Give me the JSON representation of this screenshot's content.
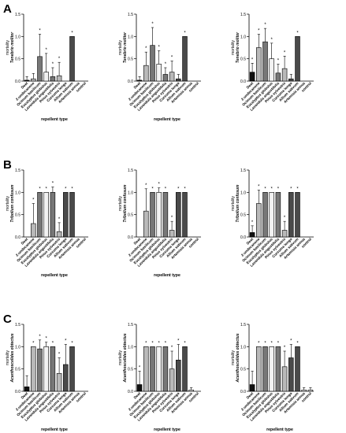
{
  "figure": {
    "panel_letters": [
      "A",
      "B",
      "C"
    ],
    "colors": {
      "dark": "#111111",
      "mid_gray": "#777777",
      "light_gray": "#b9b9b9",
      "dark_gray": "#4a4a4a",
      "white_bar": "#f2f2f2",
      "axis": "#000000"
    }
  },
  "chart_data": [
    {
      "type": "bar",
      "panel": "A",
      "ylabel_line1": "mortality",
      "ylabel_line2": "Tenebrio molitor",
      "xlabel": "repellent type",
      "categories": [
        "Deet",
        "2-undecanone",
        "Ocimum basilicum",
        "Eucalyptus globulus",
        "Lavandula angustifolia",
        "Pinus sylvestris",
        "Curcuma longa",
        "Allium sativum",
        "Artemisia annua",
        "control"
      ],
      "values": [
        0.02,
        0.05,
        0.55,
        0.2,
        0.1,
        0.12,
        0,
        1.0,
        0,
        0
      ],
      "errors": [
        0.08,
        0.12,
        0.5,
        0.42,
        0.2,
        0.3,
        0,
        0,
        0,
        0
      ],
      "stars": [
        false,
        false,
        true,
        true,
        true,
        true,
        false,
        true,
        false,
        false
      ],
      "ylim": [
        0,
        1.5
      ],
      "yticks": [
        "0.0",
        "0.5",
        "1.0",
        "1.5"
      ]
    },
    {
      "type": "bar",
      "panel": "A",
      "ylabel_line1": "mortality",
      "ylabel_line2": "Tenebrio molitor",
      "xlabel": "repellent type",
      "categories": [
        "Deet",
        "2-undecanone",
        "Ocimum basilicum",
        "Eucalyptus globulus",
        "Lavandula angustifolia",
        "Pinus sylvestris",
        "Curcuma longa",
        "Allium sativum",
        "Artemisia annua",
        "control"
      ],
      "values": [
        0.02,
        0.35,
        0.8,
        0.38,
        0.15,
        0.2,
        0.05,
        1.0,
        0,
        0
      ],
      "errors": [
        0.08,
        0.3,
        0.4,
        0.3,
        0.15,
        0.25,
        0.1,
        0,
        0,
        0
      ],
      "stars": [
        false,
        true,
        true,
        true,
        true,
        true,
        false,
        true,
        false,
        false
      ],
      "ylim": [
        0,
        1.5
      ],
      "yticks": [
        "0.0",
        "0.5",
        "1.0",
        "1.5"
      ]
    },
    {
      "type": "bar",
      "panel": "A",
      "ylabel_line1": "mortality",
      "ylabel_line2": "Tenebrio molitor",
      "xlabel": "",
      "categories": [
        "Deet",
        "2-undecanone",
        "Ocimum basilicum",
        "Eucalyptus globulus",
        "Lavandula angustifolia",
        "Pinus sylvestris",
        "Curcuma longa",
        "Allium sativum",
        "Artemisia annua",
        "control"
      ],
      "values": [
        0.2,
        0.75,
        0.88,
        0.5,
        0.18,
        0.28,
        0.05,
        1.0,
        0,
        0
      ],
      "errors": [
        0.2,
        0.3,
        0.3,
        0.35,
        0.2,
        0.28,
        0.1,
        0,
        0,
        0
      ],
      "stars": [
        true,
        true,
        true,
        true,
        true,
        true,
        false,
        true,
        false,
        false
      ],
      "ylim": [
        0,
        1.5
      ],
      "yticks": [
        "0.0",
        "0.5",
        "1.0",
        "1.5"
      ]
    },
    {
      "type": "bar",
      "panel": "B",
      "ylabel_line1": "mortality",
      "ylabel_line2": "Tribolium confusum",
      "xlabel": "repellent type",
      "categories": [
        "Deet",
        "2-undecanone",
        "Ocimum basilicum",
        "Eucalyptus globulus",
        "Lavandula angustifolia",
        "Pinus sylvestris",
        "Curcuma longa",
        "Allium sativum",
        "Artemisia annua",
        "control"
      ],
      "values": [
        0,
        0.3,
        1.0,
        1.0,
        1.0,
        0.12,
        1.0,
        1.0,
        0,
        0
      ],
      "errors": [
        0,
        0.45,
        0,
        0,
        0.12,
        0.2,
        0,
        0,
        0,
        0
      ],
      "stars": [
        false,
        true,
        true,
        true,
        true,
        true,
        true,
        true,
        false,
        false
      ],
      "ylim": [
        0,
        1.5
      ],
      "yticks": [
        "0.0",
        "0.5",
        "1.0",
        "1.5"
      ]
    },
    {
      "type": "bar",
      "panel": "B",
      "ylabel_line1": "mortality",
      "ylabel_line2": "Tribolium confusum",
      "xlabel": "repellent type",
      "categories": [
        "Deet",
        "2-undecanone",
        "Ocimum basilicum",
        "Eucalyptus globulus",
        "Lavandula angustifolia",
        "Pinus sylvestris",
        "Curcuma longa",
        "Allium sativum",
        "Artemisia annua",
        "control"
      ],
      "values": [
        0,
        0.58,
        1.0,
        1.0,
        1.0,
        0.15,
        1.0,
        1.0,
        0,
        0
      ],
      "errors": [
        0,
        0.5,
        0,
        0.1,
        0,
        0.2,
        0,
        0,
        0,
        0
      ],
      "stars": [
        false,
        true,
        true,
        true,
        true,
        true,
        true,
        true,
        false,
        false
      ],
      "ylim": [
        0,
        1.5
      ],
      "yticks": [
        "0.0",
        "0.5",
        "1.0",
        "1.5"
      ]
    },
    {
      "type": "bar",
      "panel": "B",
      "ylabel_line1": "mortality",
      "ylabel_line2": "Tribolium confusum",
      "xlabel": "",
      "categories": [
        "Deet",
        "2-undecanone",
        "Ocimum basilicum",
        "Eucalyptus globulus",
        "Lavandula angustifolia",
        "Pinus sylvestris",
        "Curcuma longa",
        "Allium sativum",
        "Artemisia annua",
        "control"
      ],
      "values": [
        0.1,
        0.75,
        1.0,
        1.0,
        1.0,
        0.15,
        1.0,
        1.0,
        0,
        0
      ],
      "errors": [
        0.15,
        0.3,
        0,
        0,
        0,
        0.2,
        0,
        0,
        0,
        0
      ],
      "stars": [
        true,
        true,
        true,
        true,
        true,
        true,
        true,
        true,
        false,
        false
      ],
      "ylim": [
        0,
        1.5
      ],
      "yticks": [
        "0.0",
        "0.5",
        "1.0",
        "1.5"
      ]
    },
    {
      "type": "bar",
      "panel": "C",
      "ylabel_line1": "mortality",
      "ylabel_line2": "Acanthoscelides obtectus",
      "xlabel": "repellent type",
      "categories": [
        "Deet",
        "2-undecanone",
        "Ocimum basilicum",
        "Eucalyptus globulus",
        "Lavandula angustifolia",
        "Pinus sylvestris",
        "Curcuma longa",
        "Allium sativum",
        "Artemisia annua",
        "control"
      ],
      "values": [
        0.1,
        1.0,
        0.95,
        1.0,
        1.0,
        0.4,
        0.6,
        1.0,
        0,
        0
      ],
      "errors": [
        0.25,
        0,
        0.2,
        0.1,
        0,
        0.35,
        0.45,
        0,
        0,
        0
      ],
      "stars": [
        false,
        true,
        true,
        true,
        true,
        true,
        true,
        true,
        false,
        false
      ],
      "ylim": [
        0,
        1.5
      ],
      "yticks": [
        "0.0",
        "0.5",
        "1.0",
        "1.5"
      ]
    },
    {
      "type": "bar",
      "panel": "C",
      "ylabel_line1": "mortality",
      "ylabel_line2": "Acanthoscelides obtectus",
      "xlabel": "repellent type",
      "categories": [
        "Deet",
        "2-undecanone",
        "Ocimum basilicum",
        "Eucalyptus globulus",
        "Lavandula angustifolia",
        "Pinus sylvestris",
        "Curcuma longa",
        "Allium sativum",
        "Artemisia annua",
        "control"
      ],
      "values": [
        0.15,
        1.0,
        1.0,
        1.0,
        1.0,
        0.5,
        0.7,
        1.0,
        0.03,
        0
      ],
      "errors": [
        0.3,
        0,
        0,
        0,
        0,
        0.4,
        0.35,
        0,
        0.05,
        0
      ],
      "stars": [
        true,
        true,
        true,
        true,
        true,
        true,
        true,
        true,
        false,
        false
      ],
      "ylim": [
        0,
        1.5
      ],
      "yticks": [
        "0.0",
        "0.5",
        "1.0",
        "1.5"
      ]
    },
    {
      "type": "bar",
      "panel": "C",
      "ylabel_line1": "mortality",
      "ylabel_line2": "Acanthoscelides obtectus",
      "xlabel": "repellent type",
      "categories": [
        "Deet",
        "2-undecanone",
        "Ocimum basilicum",
        "Eucalyptus globulus",
        "Lavandula angustifolia",
        "Pinus sylvestris",
        "Curcuma longa",
        "Allium sativum",
        "Artemisia annua",
        "control"
      ],
      "values": [
        0.15,
        1.0,
        1.0,
        1.0,
        1.0,
        0.55,
        0.75,
        1.0,
        0.03,
        0.03
      ],
      "errors": [
        0.3,
        0,
        0,
        0,
        0,
        0.35,
        0.3,
        0,
        0.05,
        0.05
      ],
      "stars": [
        false,
        true,
        true,
        true,
        true,
        true,
        true,
        true,
        false,
        false
      ],
      "ylim": [
        0,
        1.5
      ],
      "yticks": [
        "0.0",
        "0.5",
        "1.0",
        "1.5"
      ]
    }
  ]
}
